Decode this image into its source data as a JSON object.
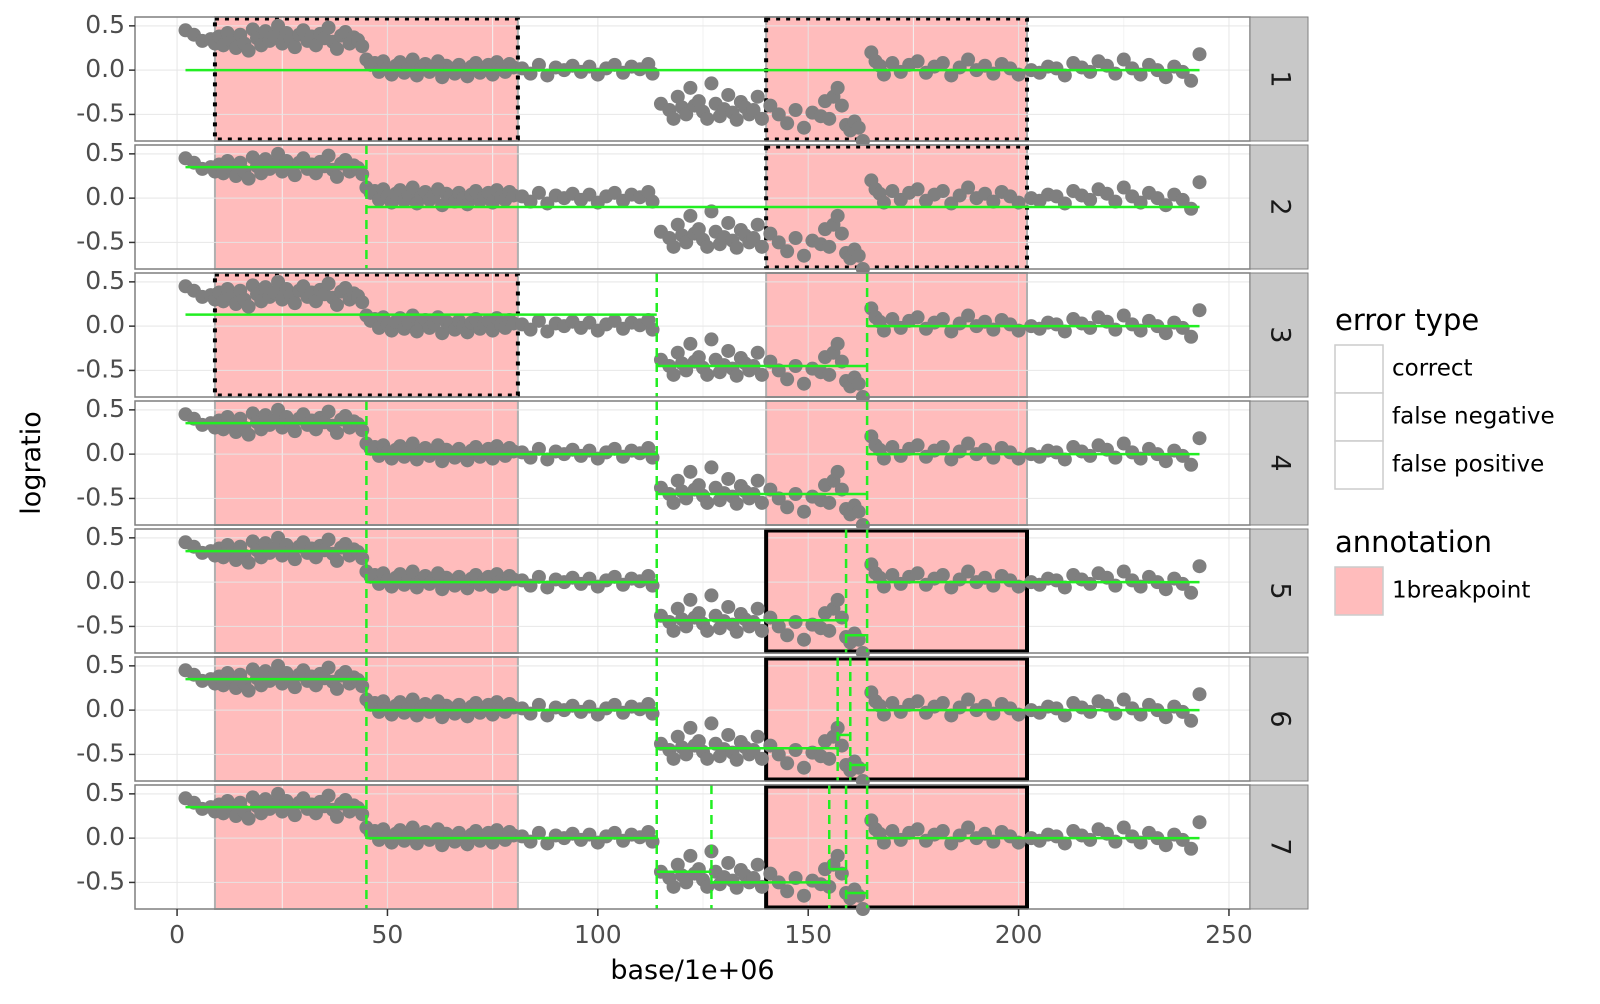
{
  "chart_data": {
    "type": "scatter",
    "xlabel": "base/1e+06",
    "ylabel": "logratio",
    "xlim": [
      -10,
      255
    ],
    "ylim": [
      -0.8,
      0.6
    ],
    "x_ticks": [
      0,
      50,
      100,
      150,
      200,
      250
    ],
    "y_ticks": [
      0.5,
      0.0,
      -0.5
    ],
    "y_tick_labels": [
      "0.5",
      "0.0",
      "-0.5"
    ],
    "grid": true,
    "facet_labels": [
      "1",
      "2",
      "3",
      "4",
      "5",
      "6",
      "7"
    ],
    "legend_position": "right",
    "legend": {
      "error_type_title": "error type",
      "error_type_items": [
        {
          "label": "correct",
          "linetype": "none"
        },
        {
          "label": "false negative",
          "linetype": "none"
        },
        {
          "label": "false positive",
          "linetype": "none"
        }
      ],
      "annotation_title": "annotation",
      "annotation_items": [
        {
          "label": "1breakpoint",
          "color": "#ffbcbc"
        }
      ]
    },
    "colors": {
      "points": "#7f7f7f",
      "segments": "#22ee22",
      "annotation_fill": "#ffbcbc",
      "annotation_border": "#b0b0b0",
      "strip_bg": "#c8c8c8",
      "grid_major": "#e5e5e5"
    },
    "annotation_regions": [
      {
        "x": [
          9,
          81
        ],
        "label": "1breakpoint"
      },
      {
        "x": [
          140,
          202
        ],
        "label": "1breakpoint"
      }
    ],
    "points": [
      [
        2,
        0.45
      ],
      [
        4,
        0.4
      ],
      [
        6,
        0.33
      ],
      [
        8,
        0.35
      ],
      [
        9,
        0.3
      ],
      [
        10,
        0.38
      ],
      [
        11,
        0.28
      ],
      [
        12,
        0.42
      ],
      [
        13,
        0.33
      ],
      [
        14,
        0.25
      ],
      [
        15,
        0.4
      ],
      [
        16,
        0.3
      ],
      [
        17,
        0.22
      ],
      [
        18,
        0.46
      ],
      [
        19,
        0.36
      ],
      [
        20,
        0.28
      ],
      [
        21,
        0.44
      ],
      [
        22,
        0.33
      ],
      [
        23,
        0.38
      ],
      [
        24,
        0.5
      ],
      [
        25,
        0.3
      ],
      [
        26,
        0.42
      ],
      [
        27,
        0.35
      ],
      [
        28,
        0.26
      ],
      [
        29,
        0.4
      ],
      [
        30,
        0.45
      ],
      [
        31,
        0.33
      ],
      [
        32,
        0.38
      ],
      [
        33,
        0.28
      ],
      [
        34,
        0.41
      ],
      [
        35,
        0.36
      ],
      [
        36,
        0.48
      ],
      [
        37,
        0.32
      ],
      [
        38,
        0.24
      ],
      [
        39,
        0.39
      ],
      [
        40,
        0.43
      ],
      [
        41,
        0.3
      ],
      [
        42,
        0.37
      ],
      [
        43,
        0.34
      ],
      [
        44,
        0.27
      ],
      [
        45,
        0.12
      ],
      [
        46,
        0.06
      ],
      [
        47,
        0.08
      ],
      [
        48,
        -0.02
      ],
      [
        49,
        0.1
      ],
      [
        50,
        0.02
      ],
      [
        51,
        -0.05
      ],
      [
        52,
        0.05
      ],
      [
        53,
        0.09
      ],
      [
        54,
        -0.03
      ],
      [
        55,
        0.04
      ],
      [
        56,
        0.12
      ],
      [
        57,
        -0.06
      ],
      [
        58,
        0.01
      ],
      [
        59,
        0.07
      ],
      [
        60,
        -0.02
      ],
      [
        61,
        0.03
      ],
      [
        62,
        0.1
      ],
      [
        63,
        -0.08
      ],
      [
        64,
        0.05
      ],
      [
        65,
        0.02
      ],
      [
        66,
        -0.04
      ],
      [
        67,
        0.06
      ],
      [
        68,
        0.0
      ],
      [
        69,
        -0.07
      ],
      [
        70,
        0.04
      ],
      [
        71,
        0.08
      ],
      [
        72,
        -0.03
      ],
      [
        73,
        0.02
      ],
      [
        74,
        0.06
      ],
      [
        75,
        -0.05
      ],
      [
        76,
        0.09
      ],
      [
        77,
        0.01
      ],
      [
        78,
        -0.02
      ],
      [
        79,
        0.07
      ],
      [
        80,
        0.03
      ],
      [
        82,
        0.02
      ],
      [
        84,
        -0.04
      ],
      [
        86,
        0.06
      ],
      [
        88,
        -0.06
      ],
      [
        90,
        0.03
      ],
      [
        92,
        0.0
      ],
      [
        94,
        0.05
      ],
      [
        96,
        -0.02
      ],
      [
        98,
        0.04
      ],
      [
        100,
        -0.05
      ],
      [
        102,
        0.02
      ],
      [
        104,
        0.06
      ],
      [
        106,
        -0.03
      ],
      [
        108,
        0.04
      ],
      [
        110,
        0.01
      ],
      [
        112,
        0.07
      ],
      [
        113,
        -0.04
      ],
      [
        115,
        -0.38
      ],
      [
        117,
        -0.45
      ],
      [
        118,
        -0.55
      ],
      [
        119,
        -0.3
      ],
      [
        120,
        -0.42
      ],
      [
        121,
        -0.5
      ],
      [
        122,
        -0.2
      ],
      [
        123,
        -0.4
      ],
      [
        124,
        -0.35
      ],
      [
        125,
        -0.47
      ],
      [
        126,
        -0.55
      ],
      [
        127,
        -0.15
      ],
      [
        128,
        -0.38
      ],
      [
        129,
        -0.52
      ],
      [
        130,
        -0.44
      ],
      [
        131,
        -0.28
      ],
      [
        132,
        -0.48
      ],
      [
        133,
        -0.56
      ],
      [
        134,
        -0.36
      ],
      [
        135,
        -0.42
      ],
      [
        136,
        -0.5
      ],
      [
        137,
        -0.45
      ],
      [
        138,
        -0.3
      ],
      [
        139,
        -0.55
      ],
      [
        141,
        -0.4
      ],
      [
        143,
        -0.5
      ],
      [
        145,
        -0.6
      ],
      [
        147,
        -0.45
      ],
      [
        149,
        -0.65
      ],
      [
        151,
        -0.48
      ],
      [
        153,
        -0.52
      ],
      [
        154,
        -0.35
      ],
      [
        155,
        -0.55
      ],
      [
        156,
        -0.3
      ],
      [
        157,
        -0.2
      ],
      [
        158,
        -0.4
      ],
      [
        159,
        -0.62
      ],
      [
        160,
        -0.68
      ],
      [
        161,
        -0.58
      ],
      [
        162,
        -0.65
      ],
      [
        163,
        -0.8
      ],
      [
        165,
        0.2
      ],
      [
        166,
        0.1
      ],
      [
        167,
        0.05
      ],
      [
        168,
        -0.05
      ],
      [
        170,
        0.08
      ],
      [
        172,
        -0.02
      ],
      [
        174,
        0.06
      ],
      [
        176,
        0.1
      ],
      [
        178,
        -0.03
      ],
      [
        180,
        0.04
      ],
      [
        182,
        0.08
      ],
      [
        184,
        -0.06
      ],
      [
        186,
        0.03
      ],
      [
        188,
        0.12
      ],
      [
        190,
        0.0
      ],
      [
        192,
        0.05
      ],
      [
        194,
        -0.04
      ],
      [
        196,
        0.07
      ],
      [
        198,
        0.02
      ],
      [
        200,
        -0.05
      ],
      [
        203,
        0.0
      ],
      [
        205,
        -0.03
      ],
      [
        207,
        0.04
      ],
      [
        209,
        0.02
      ],
      [
        211,
        -0.06
      ],
      [
        213,
        0.08
      ],
      [
        215,
        0.03
      ],
      [
        217,
        -0.02
      ],
      [
        219,
        0.1
      ],
      [
        221,
        0.05
      ],
      [
        223,
        -0.04
      ],
      [
        225,
        0.12
      ],
      [
        227,
        0.02
      ],
      [
        229,
        -0.05
      ],
      [
        231,
        0.06
      ],
      [
        233,
        0.0
      ],
      [
        235,
        -0.08
      ],
      [
        237,
        0.04
      ],
      [
        239,
        -0.02
      ],
      [
        241,
        -0.12
      ],
      [
        243,
        0.18
      ]
    ],
    "panels": [
      {
        "label": "1",
        "segments": [
          {
            "x": [
              2,
              243
            ],
            "y": 0.0
          }
        ],
        "changepoints": [],
        "error_boxes": [
          {
            "x": [
              9,
              81
            ],
            "type": "false positive"
          },
          {
            "x": [
              140,
              202
            ],
            "type": "false positive"
          }
        ]
      },
      {
        "label": "2",
        "segments": [
          {
            "x": [
              2,
              45
            ],
            "y": 0.35
          },
          {
            "x": [
              45,
              243
            ],
            "y": -0.1
          }
        ],
        "changepoints": [
          45
        ],
        "error_boxes": [
          {
            "x": [
              140,
              202
            ],
            "type": "false positive"
          }
        ]
      },
      {
        "label": "3",
        "segments": [
          {
            "x": [
              2,
              114
            ],
            "y": 0.13
          },
          {
            "x": [
              114,
              164
            ],
            "y": -0.45
          },
          {
            "x": [
              164,
              243
            ],
            "y": 0.0
          }
        ],
        "changepoints": [
          114,
          164
        ],
        "error_boxes": [
          {
            "x": [
              9,
              81
            ],
            "type": "false positive"
          }
        ]
      },
      {
        "label": "4",
        "segments": [
          {
            "x": [
              2,
              45
            ],
            "y": 0.35
          },
          {
            "x": [
              45,
              114
            ],
            "y": 0.0
          },
          {
            "x": [
              114,
              164
            ],
            "y": -0.45
          },
          {
            "x": [
              164,
              243
            ],
            "y": 0.0
          }
        ],
        "changepoints": [
          45,
          114,
          164
        ],
        "error_boxes": []
      },
      {
        "label": "5",
        "segments": [
          {
            "x": [
              2,
              45
            ],
            "y": 0.35
          },
          {
            "x": [
              45,
              114
            ],
            "y": 0.0
          },
          {
            "x": [
              114,
              159
            ],
            "y": -0.43
          },
          {
            "x": [
              159,
              164
            ],
            "y": -0.6
          },
          {
            "x": [
              164,
              243
            ],
            "y": 0.0
          }
        ],
        "changepoints": [
          45,
          114,
          159,
          164
        ],
        "error_boxes": [
          {
            "x": [
              140,
              202
            ],
            "type": "false negative"
          }
        ]
      },
      {
        "label": "6",
        "segments": [
          {
            "x": [
              2,
              45
            ],
            "y": 0.35
          },
          {
            "x": [
              45,
              114
            ],
            "y": 0.0
          },
          {
            "x": [
              114,
              157
            ],
            "y": -0.43
          },
          {
            "x": [
              157,
              160
            ],
            "y": -0.28
          },
          {
            "x": [
              160,
              164
            ],
            "y": -0.62
          },
          {
            "x": [
              164,
              243
            ],
            "y": 0.0
          }
        ],
        "changepoints": [
          45,
          114,
          157,
          160,
          164
        ],
        "error_boxes": [
          {
            "x": [
              140,
              202
            ],
            "type": "false negative"
          }
        ]
      },
      {
        "label": "7",
        "segments": [
          {
            "x": [
              2,
              45
            ],
            "y": 0.35
          },
          {
            "x": [
              45,
              114
            ],
            "y": 0.0
          },
          {
            "x": [
              114,
              127
            ],
            "y": -0.38
          },
          {
            "x": [
              127,
              155
            ],
            "y": -0.5
          },
          {
            "x": [
              155,
              159
            ],
            "y": -0.35
          },
          {
            "x": [
              159,
              164
            ],
            "y": -0.62
          },
          {
            "x": [
              164,
              243
            ],
            "y": 0.0
          }
        ],
        "changepoints": [
          45,
          114,
          127,
          155,
          159,
          164
        ],
        "error_boxes": [
          {
            "x": [
              140,
              202
            ],
            "type": "false negative"
          }
        ]
      }
    ]
  }
}
